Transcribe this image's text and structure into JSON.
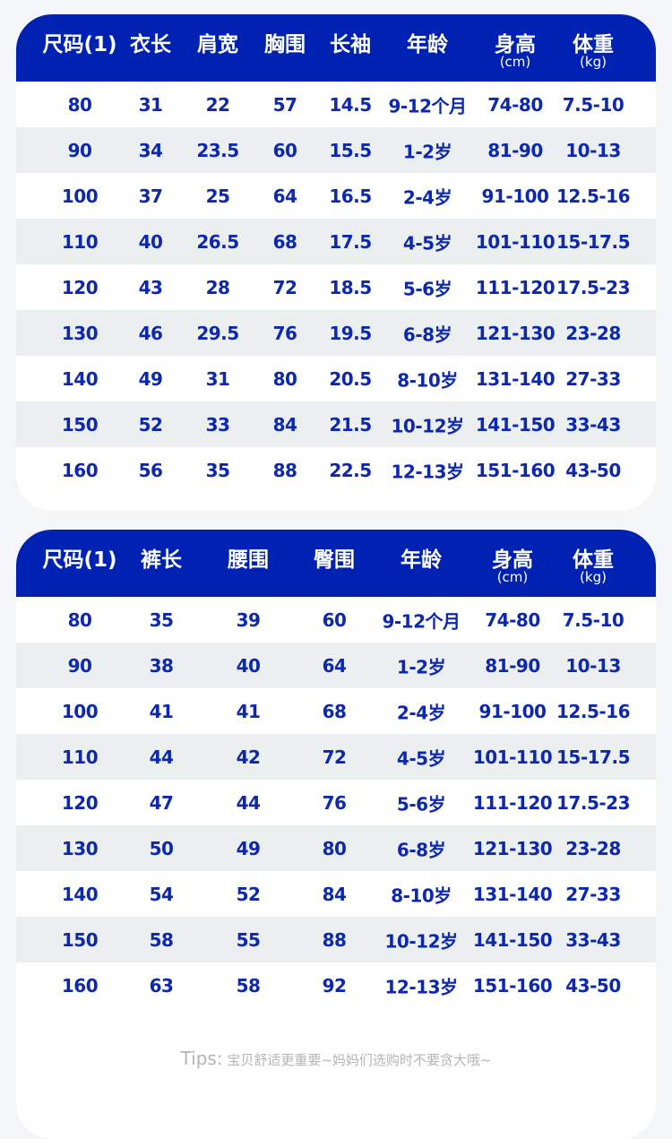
{
  "top": {
    "headers": [
      "尺码(1)",
      "衣长",
      "肩宽",
      "胸围",
      "长袖",
      "年龄",
      "身高",
      "体重"
    ],
    "units": [
      "",
      "",
      "",
      "",
      "",
      "",
      "(cm)",
      "(kg)"
    ],
    "rows": [
      [
        "80",
        "31",
        "22",
        "57",
        "14.5",
        "9-12个月",
        "74-80",
        "7.5-10"
      ],
      [
        "90",
        "34",
        "23.5",
        "60",
        "15.5",
        "1-2岁",
        "81-90",
        "10-13"
      ],
      [
        "100",
        "37",
        "25",
        "64",
        "16.5",
        "2-4岁",
        "91-100",
        "12.5-16"
      ],
      [
        "110",
        "40",
        "26.5",
        "68",
        "17.5",
        "4-5岁",
        "101-110",
        "15-17.5"
      ],
      [
        "120",
        "43",
        "28",
        "72",
        "18.5",
        "5-6岁",
        "111-120",
        "17.5-23"
      ],
      [
        "130",
        "46",
        "29.5",
        "76",
        "19.5",
        "6-8岁",
        "121-130",
        "23-28"
      ],
      [
        "140",
        "49",
        "31",
        "80",
        "20.5",
        "8-10岁",
        "131-140",
        "27-33"
      ],
      [
        "150",
        "52",
        "33",
        "84",
        "21.5",
        "10-12岁",
        "141-150",
        "33-43"
      ],
      [
        "160",
        "56",
        "35",
        "88",
        "22.5",
        "12-13岁",
        "151-160",
        "43-50"
      ]
    ]
  },
  "bottom": {
    "headers": [
      "尺码(1)",
      "裤长",
      "腰围",
      "臀围",
      "年龄",
      "身高",
      "体重"
    ],
    "units": [
      "",
      "",
      "",
      "",
      "",
      "(cm)",
      "(kg)"
    ],
    "rows": [
      [
        "80",
        "35",
        "39",
        "60",
        "9-12个月",
        "74-80",
        "7.5-10"
      ],
      [
        "90",
        "38",
        "40",
        "64",
        "1-2岁",
        "81-90",
        "10-13"
      ],
      [
        "100",
        "41",
        "41",
        "68",
        "2-4岁",
        "91-100",
        "12.5-16"
      ],
      [
        "110",
        "44",
        "42",
        "72",
        "4-5岁",
        "101-110",
        "15-17.5"
      ],
      [
        "120",
        "47",
        "44",
        "76",
        "5-6岁",
        "111-120",
        "17.5-23"
      ],
      [
        "130",
        "50",
        "49",
        "80",
        "6-8岁",
        "121-130",
        "23-28"
      ],
      [
        "140",
        "54",
        "52",
        "84",
        "8-10岁",
        "131-140",
        "27-33"
      ],
      [
        "150",
        "58",
        "55",
        "88",
        "10-12岁",
        "141-150",
        "33-43"
      ],
      [
        "160",
        "63",
        "58",
        "92",
        "12-13岁",
        "151-160",
        "43-50"
      ]
    ]
  },
  "tips": {
    "label": "Tips:",
    "text": " 宝贝舒适更重要~妈妈们选购时不要贪大哦~"
  },
  "colors": {
    "header": "#0022b2",
    "text": "#0d28b0",
    "alt_row": "#eceff0"
  }
}
